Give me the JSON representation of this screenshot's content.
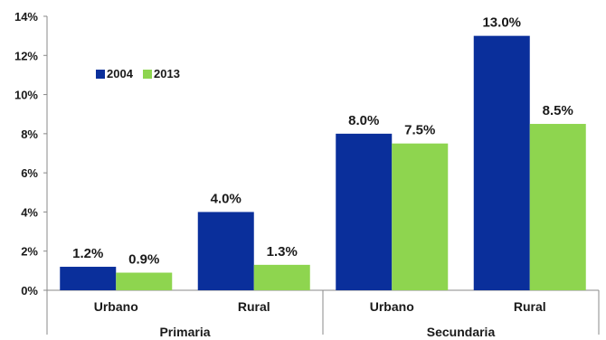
{
  "chart_data": {
    "type": "bar",
    "series": [
      {
        "name": "2004",
        "color": "#0a2f9b",
        "values": [
          1.2,
          4.0,
          8.0,
          13.0
        ],
        "labels": [
          "1.2%",
          "4.0%",
          "8.0%",
          "13.0%"
        ]
      },
      {
        "name": "2013",
        "color": "#8ed54f",
        "values": [
          0.9,
          1.3,
          7.5,
          8.5
        ],
        "labels": [
          "0.9%",
          "1.3%",
          "7.5%",
          "8.5%"
        ]
      }
    ],
    "categories": [
      "Urbano",
      "Rural",
      "Urbano",
      "Rural"
    ],
    "groups": [
      {
        "label": "Primaria",
        "categories": [
          0,
          1
        ]
      },
      {
        "label": "Secundaria",
        "categories": [
          2,
          3
        ]
      }
    ],
    "ylim": [
      0,
      14
    ],
    "yticks": [
      "0%",
      "2%",
      "4%",
      "6%",
      "8%",
      "10%",
      "12%",
      "14%"
    ],
    "ytick_values": [
      0,
      2,
      4,
      6,
      8,
      10,
      12,
      14
    ],
    "grid": false,
    "legend_placement": "top-left"
  }
}
